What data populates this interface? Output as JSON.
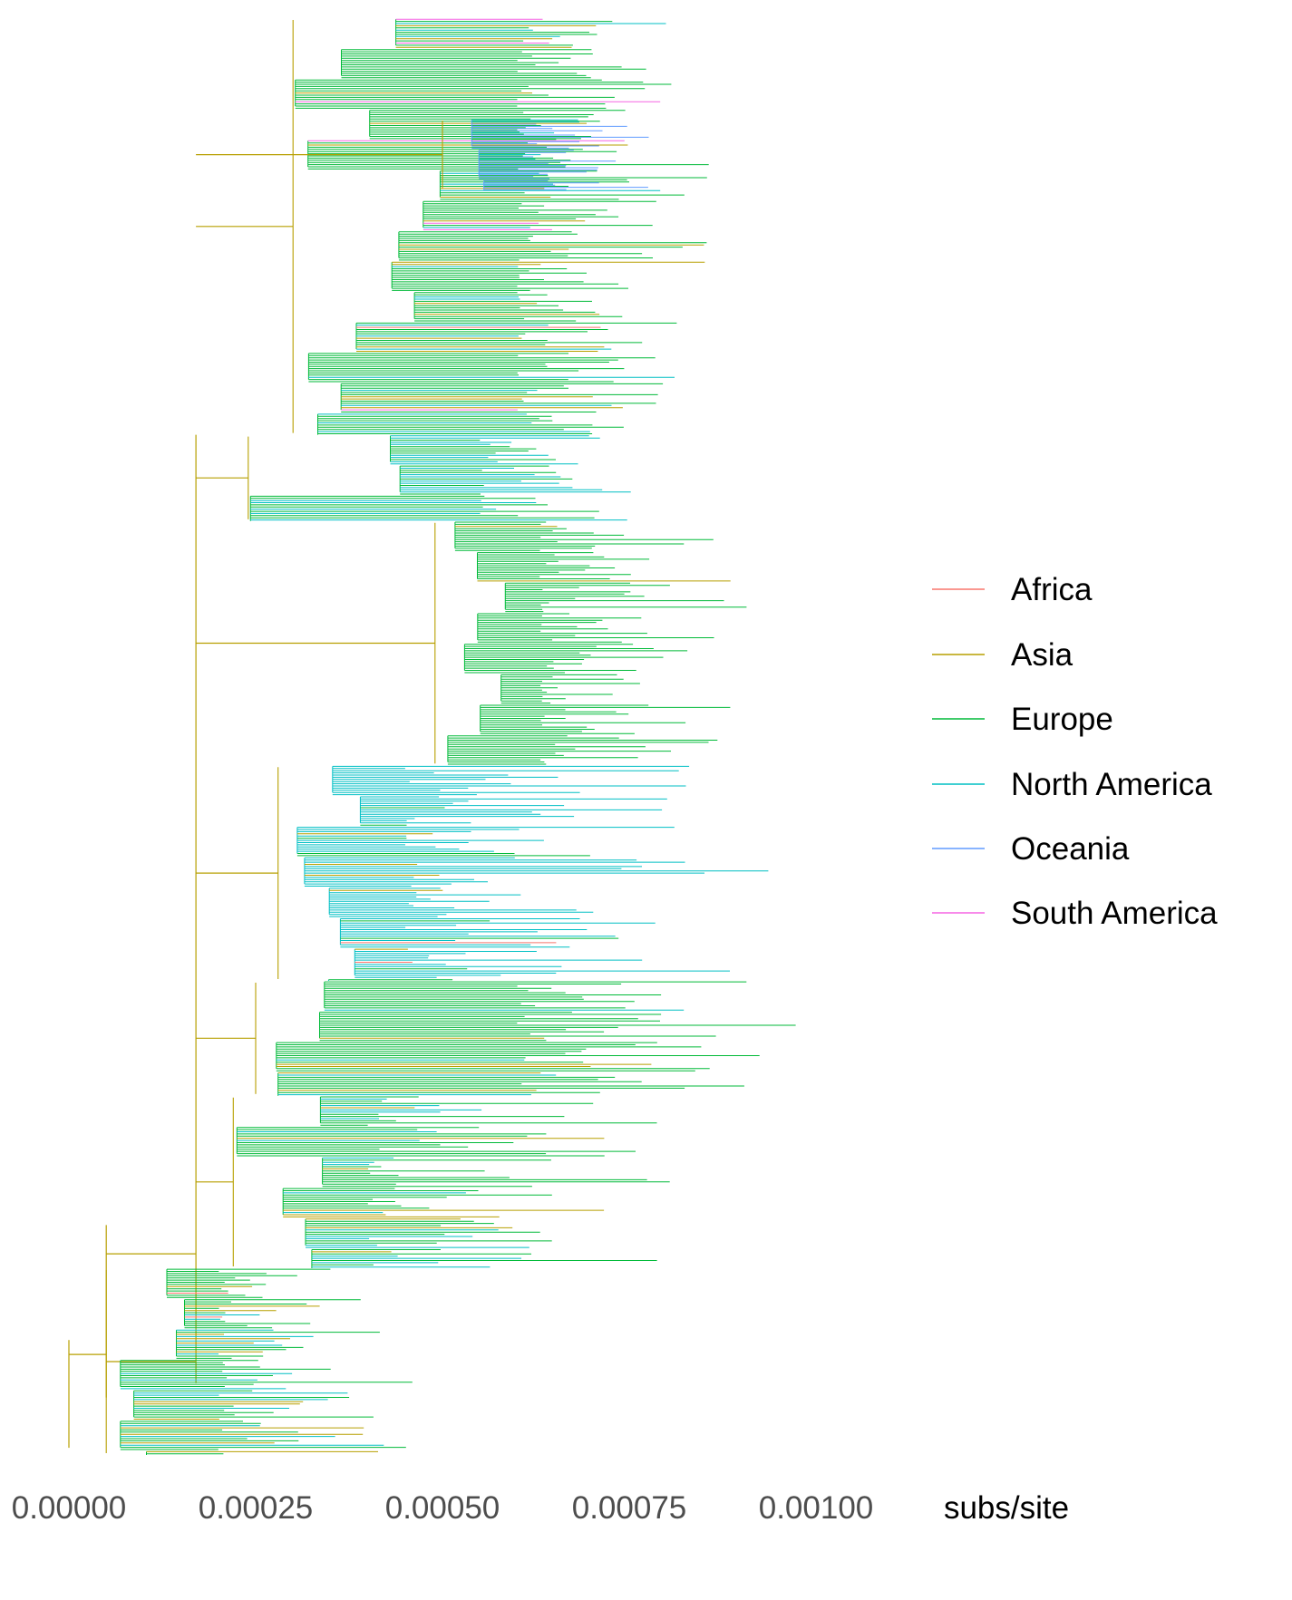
{
  "chart_data": {
    "type": "phylogenetic-tree",
    "title": "",
    "xlabel": "subs/site",
    "ylabel": "",
    "xlim": [
      0.0,
      0.00108
    ],
    "x_ticks": [
      {
        "value": 0.0,
        "label": "0.00000"
      },
      {
        "value": 0.00025,
        "label": "0.00025"
      },
      {
        "value": 0.0005,
        "label": "0.00050"
      },
      {
        "value": 0.00075,
        "label": "0.00075"
      },
      {
        "value": 0.001,
        "label": "0.00100"
      }
    ],
    "grid": false,
    "legend": {
      "placement": "right",
      "entries": [
        {
          "name": "Africa",
          "color": "#F8766D"
        },
        {
          "name": "Asia",
          "color": "#B79F00"
        },
        {
          "name": "Europe",
          "color": "#00BA38"
        },
        {
          "name": "North America",
          "color": "#00BFC4"
        },
        {
          "name": "Oceania",
          "color": "#619CFF"
        },
        {
          "name": "South America",
          "color": "#F564E3"
        }
      ]
    },
    "backbone_color": "#B79F00",
    "clades": [
      {
        "tip_lo": 0.0,
        "tip_hi": 0.29,
        "stem": 0.0003,
        "spread_min": 0.0006,
        "spread_max": 0.0009,
        "region": "Europe",
        "mix": {
          "Europe": 0.72,
          "Asia": 0.1,
          "North America": 0.12,
          "Africa": 0.03,
          "South America": 0.03
        }
      },
      {
        "tip_lo": 0.07,
        "tip_hi": 0.12,
        "stem": 0.0005,
        "spread_min": 0.00062,
        "spread_max": 0.00082,
        "region": "Oceania",
        "mix": {
          "Oceania": 0.92,
          "North America": 0.05,
          "Europe": 0.03
        }
      },
      {
        "tip_lo": 0.29,
        "tip_hi": 0.35,
        "stem": 0.00024,
        "spread_min": 0.00055,
        "spread_max": 0.0009,
        "region": "Europe",
        "mix": {
          "Europe": 0.5,
          "North America": 0.45,
          "Asia": 0.05
        }
      },
      {
        "tip_lo": 0.35,
        "tip_hi": 0.52,
        "stem": 0.00049,
        "spread_min": 0.00063,
        "spread_max": 0.00093,
        "region": "Europe",
        "mix": {
          "Europe": 0.97,
          "Asia": 0.02,
          "North America": 0.01
        }
      },
      {
        "tip_lo": 0.52,
        "tip_hi": 0.67,
        "stem": 0.00028,
        "spread_min": 0.00045,
        "spread_max": 0.00095,
        "region": "North America",
        "mix": {
          "North America": 0.8,
          "Europe": 0.12,
          "Asia": 0.06,
          "Africa": 0.02
        }
      },
      {
        "tip_lo": 0.67,
        "tip_hi": 0.75,
        "stem": 0.00025,
        "spread_min": 0.0006,
        "spread_max": 0.00102,
        "region": "Europe",
        "mix": {
          "Europe": 0.8,
          "Asia": 0.15,
          "North America": 0.05
        }
      },
      {
        "tip_lo": 0.75,
        "tip_hi": 0.87,
        "stem": 0.00022,
        "spread_min": 0.0004,
        "spread_max": 0.0009,
        "region": "Europe",
        "mix": {
          "Europe": 0.65,
          "North America": 0.25,
          "Asia": 0.1
        }
      },
      {
        "tip_lo": 0.87,
        "tip_hi": 1.0,
        "stem": 5e-05,
        "spread_min": 0.0002,
        "spread_max": 0.0005,
        "region": "Europe",
        "mix": {
          "Europe": 0.55,
          "Asia": 0.2,
          "North America": 0.2,
          "Africa": 0.05
        }
      }
    ]
  }
}
